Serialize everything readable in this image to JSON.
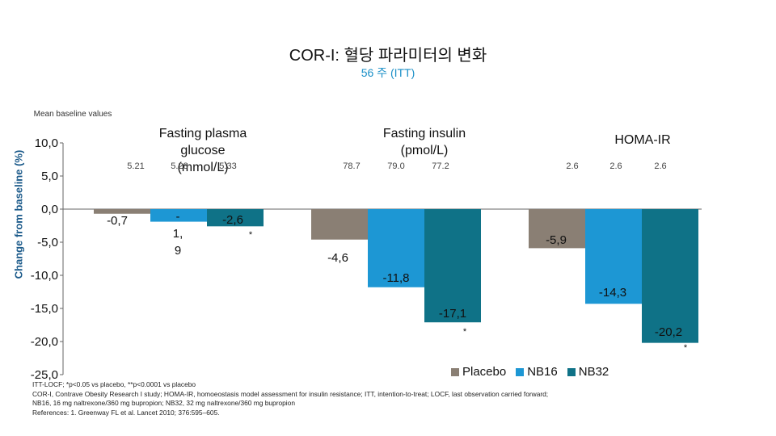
{
  "header": {
    "title": "COR-I: 혈당 파라미터의 변화",
    "subtitle": "56 주 (ITT)"
  },
  "baseline_note": "Mean baseline values",
  "chart_data": {
    "type": "bar",
    "ylabel": "Change from baseline (%)",
    "ylim": [
      -25,
      10
    ],
    "yticks": [
      10,
      5,
      0,
      -5,
      -10,
      -15,
      -20,
      -25
    ],
    "ytick_labels": [
      "10,0",
      "5,0",
      "0,0",
      "-5,0",
      "-10,0",
      "-15,0",
      "-20,0",
      "-25,0"
    ],
    "categories": [
      "Fasting plasma glucose (mmol/L)",
      "Fasting insulin (pmol/L)",
      "HOMA-IR"
    ],
    "category_titles": [
      [
        "Fasting plasma",
        "glucose",
        "(mmol/L)"
      ],
      [
        "Fasting insulin",
        "(pmol/L)"
      ],
      [
        "HOMA-IR"
      ]
    ],
    "series": [
      {
        "name": "Placebo",
        "color": "#8a7f74",
        "values": [
          -0.7,
          -4.6,
          -5.9
        ],
        "labels": [
          "-0,7",
          "-4,6",
          "-5,9"
        ],
        "baseline": [
          "5.21",
          "78.7",
          "2.6"
        ],
        "significance": [
          "",
          "",
          ""
        ]
      },
      {
        "name": "NB16",
        "color": "#1d97d4",
        "values": [
          -1.9,
          -11.8,
          -14.3
        ],
        "labels": [
          "-1,9",
          "-11,8",
          "-14,3"
        ],
        "baseline": [
          "5.28",
          "79.0",
          "2.6"
        ],
        "significance": [
          "",
          "",
          ""
        ]
      },
      {
        "name": "NB32",
        "color": "#0f7287",
        "values": [
          -2.6,
          -17.1,
          -20.2
        ],
        "labels": [
          "-2,6",
          "-17,1",
          "-20,2"
        ],
        "baseline": [
          "5.33",
          "77.2",
          "2.6"
        ],
        "significance": [
          "*",
          "*",
          "*"
        ]
      }
    ],
    "grid": false,
    "legend_position": "bottom-right"
  },
  "footnotes": [
    "ITT-LOCF; *p<0.05 vs placebo, **p<0.0001 vs placebo",
    "COR-I, Contrave Obesity Research I study; HOMA-IR, homoeostasis model assessment for insulin resistance; ITT, intention-to-treat; LOCF, last observation carried forward;",
    "NB16, 16 mg naltrexone/360 mg bupropion; NB32, 32 mg naltrexone/360 mg bupropion",
    "References: 1. Greenway FL et al. Lancet 2010; 376:595–605."
  ]
}
